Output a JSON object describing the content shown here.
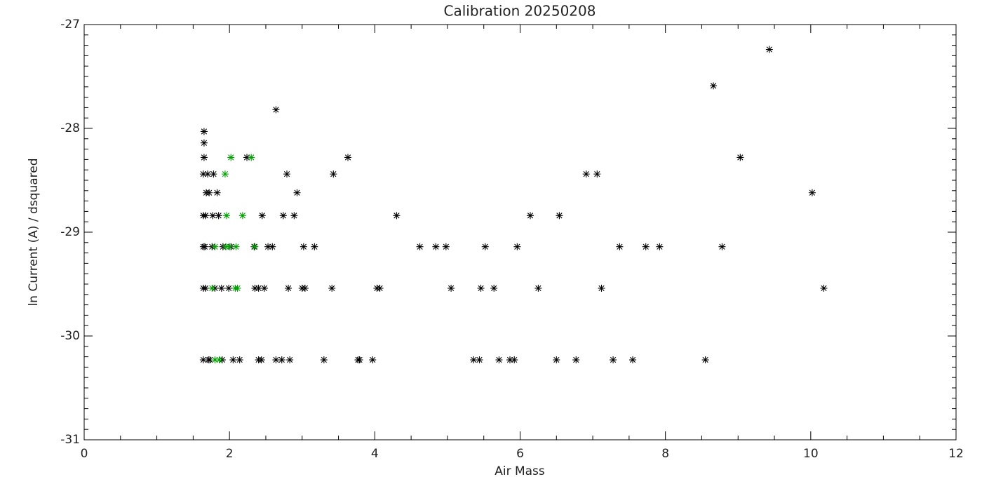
{
  "chart_data": {
    "type": "scatter",
    "title": "Calibration 20250208",
    "x_label": "Air Mass",
    "y_label": "ln Current (A) / dsquared",
    "xlim": [
      0,
      12
    ],
    "xticks": [
      0,
      2,
      4,
      6,
      8,
      10,
      12
    ],
    "xminor": 4,
    "ylim": [
      -31,
      -27
    ],
    "yticks": [
      -31,
      -30,
      -29,
      -28,
      -27
    ],
    "yminor": 10,
    "series": [
      {
        "color": "#000000",
        "x": [
          1.65,
          1.65,
          1.65,
          2.24,
          3.63,
          9.03,
          1.64,
          1.7,
          1.78,
          2.79,
          3.43,
          6.91,
          7.06,
          1.68,
          1.72,
          1.83,
          2.93,
          10.02,
          1.64,
          1.67,
          1.77,
          1.85,
          2.45,
          2.74,
          2.89,
          4.3,
          6.14,
          6.54,
          1.64,
          1.66,
          1.76,
          1.91,
          2.02,
          2.34,
          2.53,
          2.59,
          3.02,
          3.17,
          4.62,
          4.84,
          4.98,
          5.52,
          5.96,
          7.37,
          7.73,
          7.92,
          8.78,
          1.64,
          1.67,
          1.8,
          1.89,
          1.99,
          2.35,
          2.4,
          2.48,
          2.81,
          3.0,
          3.04,
          3.41,
          4.03,
          4.07,
          5.05,
          5.46,
          5.64,
          6.25,
          7.12,
          10.18,
          1.64,
          1.71,
          1.73,
          1.9,
          2.05,
          2.14,
          2.4,
          2.44,
          2.64,
          2.72,
          2.83,
          3.3,
          3.77,
          3.79,
          3.97,
          5.36,
          5.44,
          5.71,
          5.86,
          5.92,
          6.5,
          6.77,
          7.28,
          7.55,
          8.55,
          2.64,
          8.66,
          9.43
        ],
        "y": [
          -28.03,
          -28.14,
          -28.28,
          -28.28,
          -28.28,
          -28.28,
          -28.44,
          -28.44,
          -28.44,
          -28.44,
          -28.44,
          -28.44,
          -28.44,
          -28.62,
          -28.62,
          -28.62,
          -28.62,
          -28.62,
          -28.84,
          -28.84,
          -28.84,
          -28.84,
          -28.84,
          -28.84,
          -28.84,
          -28.84,
          -28.84,
          -28.84,
          -29.14,
          -29.14,
          -29.14,
          -29.14,
          -29.14,
          -29.14,
          -29.14,
          -29.14,
          -29.14,
          -29.14,
          -29.14,
          -29.14,
          -29.14,
          -29.14,
          -29.14,
          -29.14,
          -29.14,
          -29.14,
          -29.14,
          -29.54,
          -29.54,
          -29.54,
          -29.54,
          -29.54,
          -29.54,
          -29.54,
          -29.54,
          -29.54,
          -29.54,
          -29.54,
          -29.54,
          -29.54,
          -29.54,
          -29.54,
          -29.54,
          -29.54,
          -29.54,
          -29.54,
          -29.54,
          -30.23,
          -30.23,
          -30.23,
          -30.23,
          -30.23,
          -30.23,
          -30.23,
          -30.23,
          -30.23,
          -30.23,
          -30.23,
          -30.23,
          -30.23,
          -30.23,
          -30.23,
          -30.23,
          -30.23,
          -30.23,
          -30.23,
          -30.23,
          -30.23,
          -30.23,
          -30.23,
          -30.23,
          -30.23,
          -27.82,
          -27.59,
          -27.24
        ]
      },
      {
        "color": "#00a000",
        "x": [
          2.02,
          2.3,
          1.94,
          1.96,
          2.18,
          1.8,
          1.95,
          2.0,
          2.09,
          2.35,
          1.76,
          2.08,
          2.11,
          1.8,
          1.86
        ],
        "y": [
          -28.28,
          -28.28,
          -28.44,
          -28.84,
          -28.84,
          -29.14,
          -29.14,
          -29.14,
          -29.14,
          -29.14,
          -29.54,
          -29.54,
          -29.54,
          -30.23,
          -30.23
        ]
      }
    ]
  }
}
